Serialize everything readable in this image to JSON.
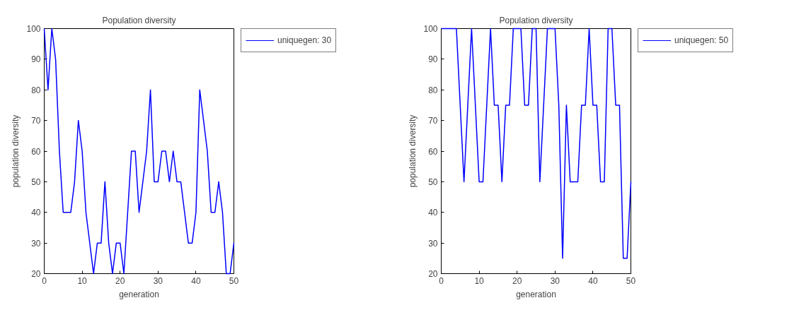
{
  "chart_data": [
    {
      "type": "line",
      "title": "Population diversity",
      "xlabel": "generation",
      "ylabel": "population diversity",
      "x": [
        0,
        1,
        2,
        3,
        4,
        5,
        6,
        7,
        8,
        9,
        10,
        11,
        12,
        13,
        14,
        15,
        16,
        17,
        18,
        19,
        20,
        21,
        22,
        23,
        24,
        25,
        26,
        27,
        28,
        29,
        30,
        31,
        32,
        33,
        34,
        35,
        36,
        37,
        38,
        39,
        40,
        41,
        42,
        43,
        44,
        45,
        46,
        47,
        48,
        49,
        50
      ],
      "xlim": [
        0,
        50
      ],
      "ylim": [
        20,
        100
      ],
      "xticks": [
        0,
        10,
        20,
        30,
        40,
        50
      ],
      "yticks": [
        20,
        30,
        40,
        50,
        60,
        70,
        80,
        90,
        100
      ],
      "legend": "top right",
      "grid": false,
      "series": [
        {
          "name": "uniquegen: 30",
          "color": "#0000ff",
          "values": [
            100,
            80,
            100,
            90,
            60,
            40,
            40,
            40,
            50,
            70,
            60,
            40,
            30,
            20,
            30,
            30,
            50,
            30,
            20,
            30,
            30,
            20,
            40,
            60,
            60,
            40,
            50,
            60,
            80,
            50,
            50,
            60,
            60,
            50,
            60,
            50,
            50,
            40,
            30,
            30,
            40,
            80,
            70,
            60,
            40,
            40,
            50,
            40,
            20,
            20,
            30
          ]
        }
      ]
    },
    {
      "type": "line",
      "title": "Population diversity",
      "xlabel": "generation",
      "ylabel": "population diversity",
      "x": [
        0,
        1,
        2,
        3,
        4,
        5,
        6,
        7,
        8,
        9,
        10,
        11,
        12,
        13,
        14,
        15,
        16,
        17,
        18,
        19,
        20,
        21,
        22,
        23,
        24,
        25,
        26,
        27,
        28,
        29,
        30,
        31,
        32,
        33,
        34,
        35,
        36,
        37,
        38,
        39,
        40,
        41,
        42,
        43,
        44,
        45,
        46,
        47,
        48,
        49,
        50
      ],
      "xlim": [
        0,
        50
      ],
      "ylim": [
        20,
        100
      ],
      "xticks": [
        0,
        10,
        20,
        30,
        40,
        50
      ],
      "yticks": [
        20,
        30,
        40,
        50,
        60,
        70,
        80,
        90,
        100
      ],
      "legend": "top right",
      "grid": false,
      "series": [
        {
          "name": "uniquegen: 50",
          "color": "#0000ff",
          "values": [
            100,
            100,
            100,
            100,
            100,
            75,
            50,
            75,
            100,
            75,
            50,
            50,
            75,
            100,
            75,
            75,
            50,
            75,
            75,
            100,
            100,
            100,
            75,
            75,
            100,
            100,
            50,
            75,
            100,
            100,
            100,
            75,
            25,
            75,
            50,
            50,
            50,
            75,
            75,
            100,
            75,
            75,
            50,
            50,
            100,
            100,
            75,
            75,
            25,
            25,
            50
          ]
        }
      ]
    }
  ]
}
